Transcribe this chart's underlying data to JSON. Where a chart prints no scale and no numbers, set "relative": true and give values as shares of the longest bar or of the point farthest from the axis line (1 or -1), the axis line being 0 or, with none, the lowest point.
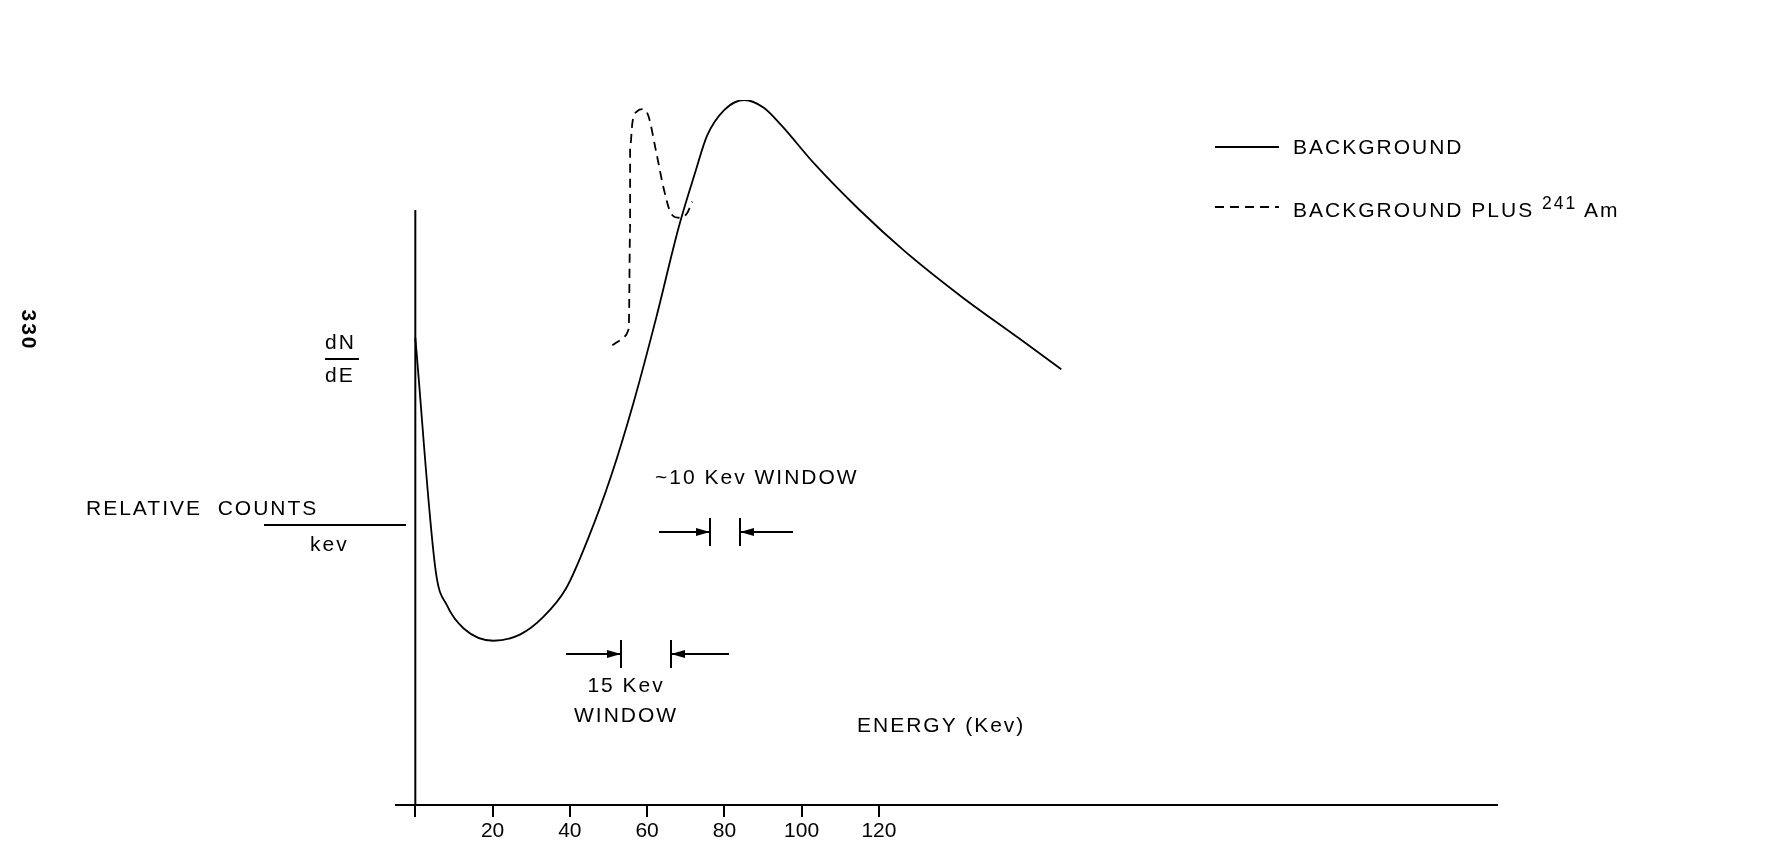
{
  "chart_data": {
    "type": "line",
    "relative": true,
    "xlabel": "ENERGY (Kev)",
    "ylabel": "RELATIVE COUNTS",
    "xlim": [
      -5,
      280
    ],
    "xticks": [
      {
        "value": 0,
        "label": null
      },
      20,
      40,
      60,
      80,
      100,
      120
    ],
    "legend": "top right",
    "series": [
      {
        "name": "BACKGROUND",
        "color": "#000000",
        "line_style": "solid",
        "x": [
          0,
          5.3,
          8.2,
          12.6,
          20.2,
          27.2,
          33,
          39,
          44.8,
          50.7,
          56.5,
          62.4,
          68.2,
          72.6,
          75.5,
          80,
          85.2,
          90.2,
          94.6,
          103.4,
          115,
          126.8,
          141.4,
          156,
          167.2
        ],
        "values": [
          0.663,
          0.331,
          0.283,
          0.25,
          0.233,
          0.242,
          0.266,
          0.307,
          0.379,
          0.467,
          0.571,
          0.692,
          0.82,
          0.9,
          0.949,
          0.986,
          1,
          0.989,
          0.965,
          0.909,
          0.844,
          0.785,
          0.721,
          0.663,
          0.618
        ]
      },
      {
        "name": "BACKGROUND PLUS $^{241}$ Am",
        "color": "#000000",
        "line_style": "dashed",
        "x": [
          51,
          53.9,
          55.1,
          55.3,
          55.6,
          55.6,
          56.2,
          57.4,
          58.9,
          60.3,
          62.4,
          64.4,
          66.2,
          68.2,
          70.3,
          71.7
        ],
        "values": [
          0.652,
          0.663,
          0.673,
          0.685,
          0.82,
          0.933,
          0.968,
          0.984,
          0.987,
          0.978,
          0.925,
          0.872,
          0.839,
          0.833,
          0.839,
          0.856
        ]
      }
    ],
    "annotations": [
      "330",
      "dN",
      "dE",
      "kev",
      "~10 Kev WINDOW",
      "15 Kev WINDOW"
    ]
  }
}
